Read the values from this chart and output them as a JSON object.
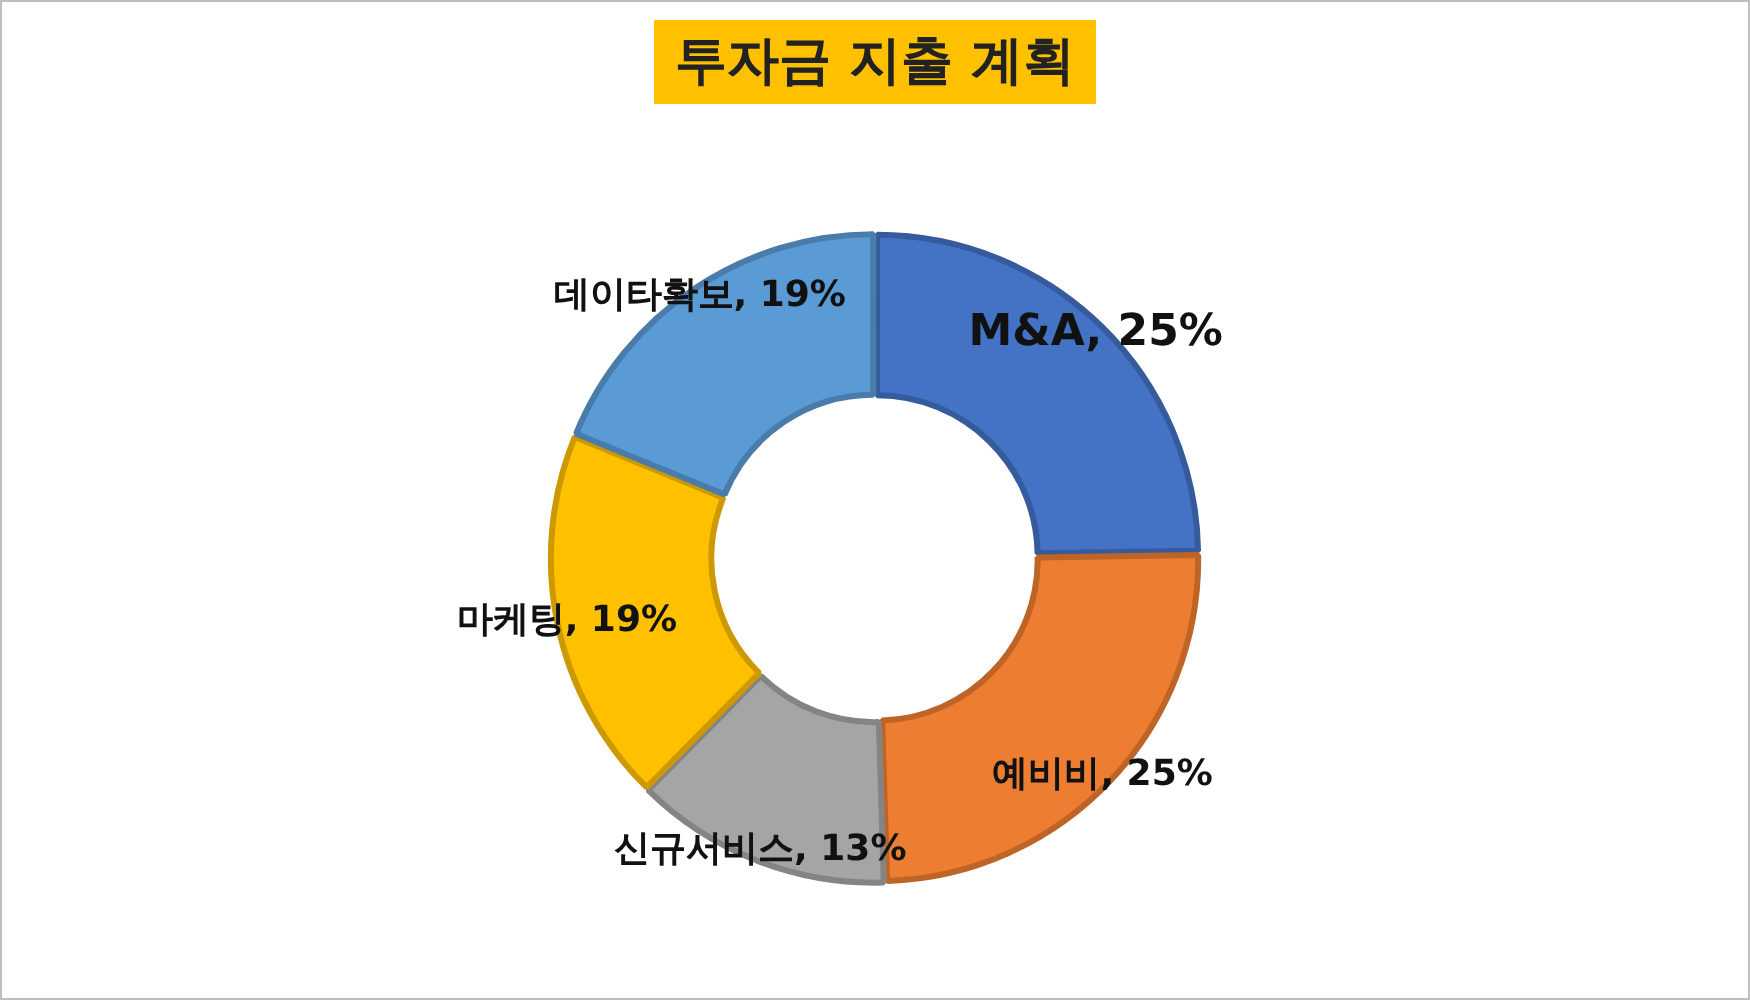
{
  "chart_data": {
    "type": "donut",
    "title": "투자금 지출 계획",
    "categories": [
      "M&A",
      "예비비",
      "신규서비스",
      "마케팅",
      "데이타확보"
    ],
    "values": [
      25,
      25,
      13,
      19,
      19
    ],
    "value_labels": [
      "25%",
      "25%",
      "13%",
      "19%",
      "19%"
    ],
    "colors": [
      "#4472c4",
      "#ed7d31",
      "#a5a5a5",
      "#ffc000",
      "#5b9bd5"
    ],
    "legend": false
  }
}
